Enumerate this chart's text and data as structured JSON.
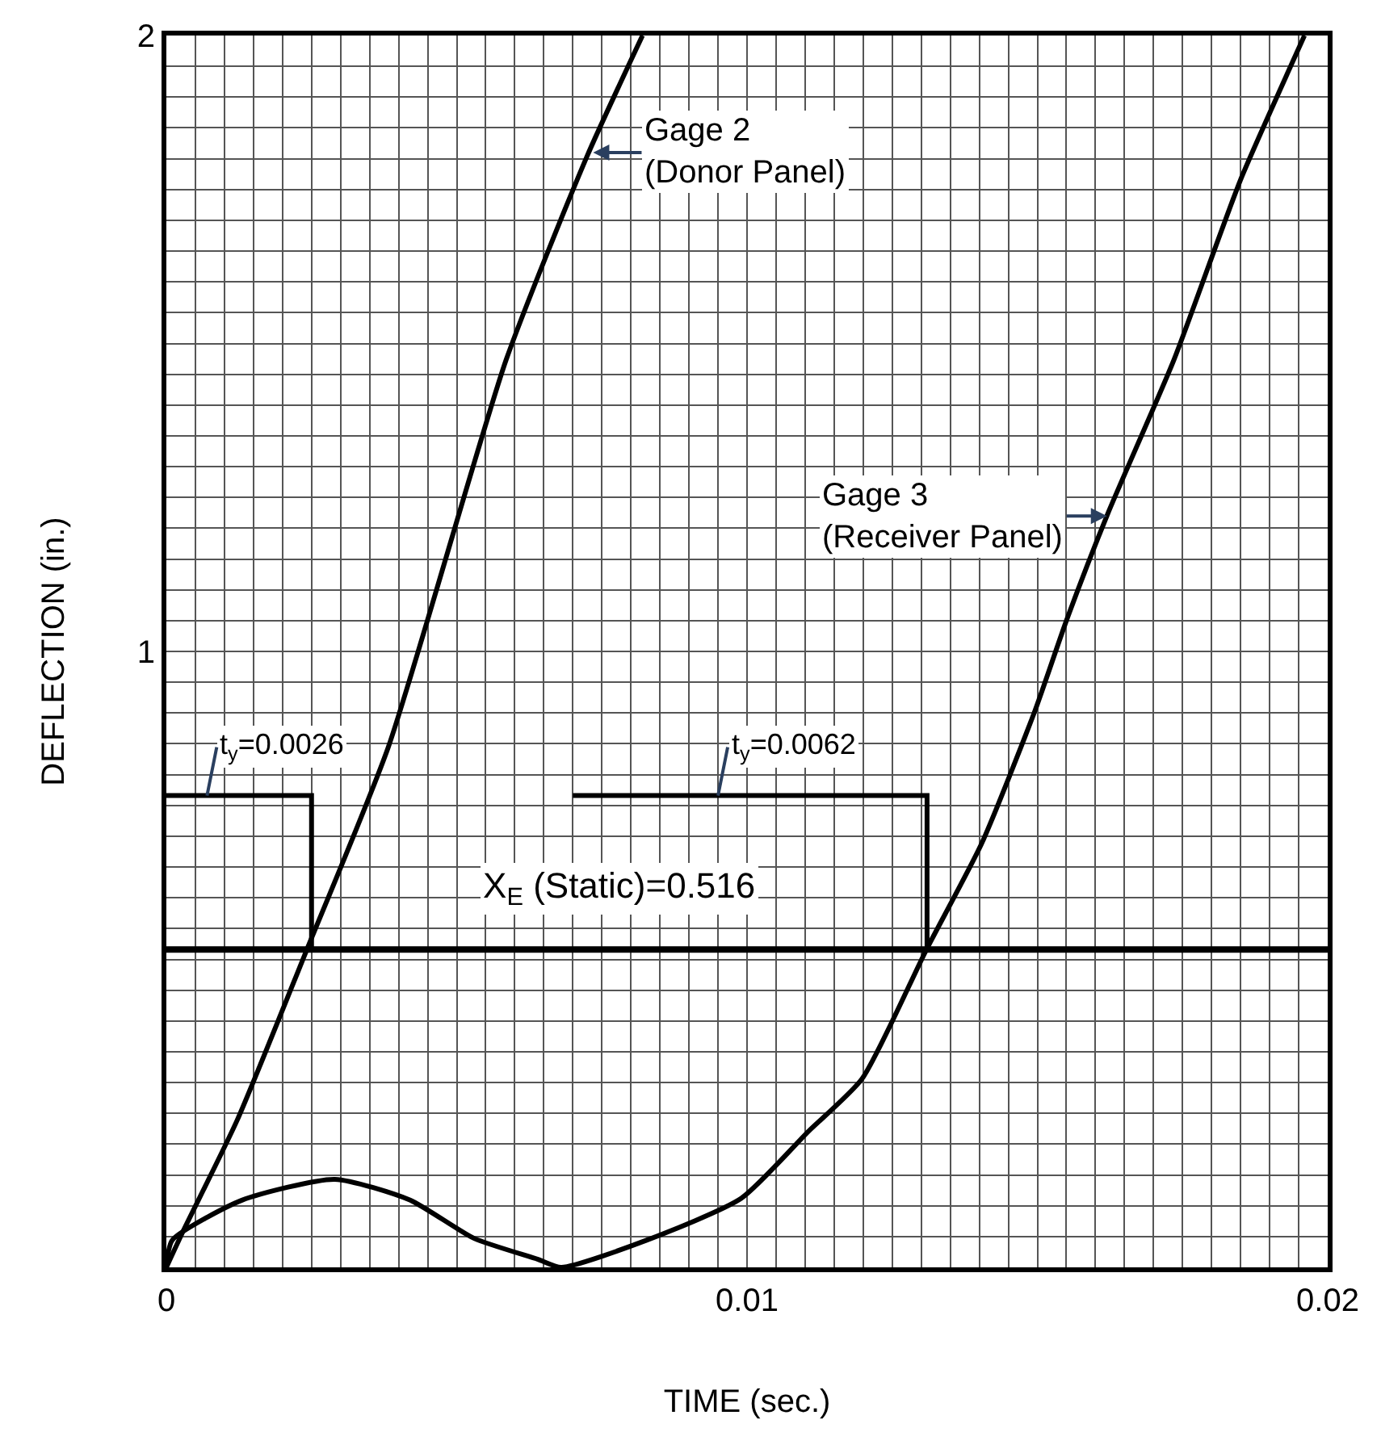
{
  "chart_data": {
    "type": "line",
    "xlabel": "TIME (sec.)",
    "ylabel": "DEFLECTION (in.)",
    "series": [
      {
        "color": "#000000",
        "x": [
          0,
          0.00028,
          0.00122,
          0.00242,
          0.00382,
          0.00585,
          0.00724,
          0.0082
        ],
        "values": [
          0,
          0.057,
          0.239,
          0.516,
          0.844,
          1.473,
          1.803,
          2.0
        ]
      },
      {
        "color": "#000000",
        "x": [
          0,
          0.0025,
          0.0025
        ],
        "values": [
          0.766,
          0.766,
          0.516
        ]
      },
      {
        "color": "#000000",
        "x": [
          0.007,
          0.0131,
          0.0131
        ],
        "values": [
          0.766,
          0.766,
          0.516
        ]
      },
      {
        "color": "#000000",
        "x": [
          0,
          0.0001,
          0.0013,
          0.0029,
          0.0042,
          0.0053,
          0.0064,
          0.0068,
          0.00827,
          0.0099,
          0.01106,
          0.01198,
          0.01309,
          0.01404,
          0.01496,
          0.0155,
          0.01621,
          0.01735,
          0.0185,
          0.01939,
          0.0196
        ],
        "values": [
          0,
          0.044,
          0.109,
          0.143,
          0.109,
          0.047,
          0.013,
          0.0,
          0.044,
          0.112,
          0.221,
          0.306,
          0.516,
          0.688,
          0.904,
          1.05,
          1.223,
          1.473,
          1.766,
          1.956,
          2.0
        ]
      }
    ],
    "xlim": [
      0,
      0.02
    ],
    "ylim": [
      0,
      2
    ],
    "xticks": [
      0,
      {
        "value": 0.0005,
        "label": null
      },
      {
        "value": 0.001,
        "label": null
      },
      {
        "value": 0.0015,
        "label": null
      },
      {
        "value": 0.002,
        "label": null
      },
      {
        "value": 0.0025,
        "label": null
      },
      {
        "value": 0.003,
        "label": null
      },
      {
        "value": 0.0035,
        "label": null
      },
      {
        "value": 0.004,
        "label": null
      },
      {
        "value": 0.0045,
        "label": null
      },
      {
        "value": 0.005,
        "label": null
      },
      {
        "value": 0.0055,
        "label": null
      },
      {
        "value": 0.006,
        "label": null
      },
      {
        "value": 0.0065,
        "label": null
      },
      {
        "value": 0.007,
        "label": null
      },
      {
        "value": 0.0075,
        "label": null
      },
      {
        "value": 0.008,
        "label": null
      },
      {
        "value": 0.0085,
        "label": null
      },
      {
        "value": 0.009,
        "label": null
      },
      {
        "value": 0.0095,
        "label": null
      },
      0.01,
      {
        "value": 0.0105,
        "label": null
      },
      {
        "value": 0.011,
        "label": null
      },
      {
        "value": 0.0115,
        "label": null
      },
      {
        "value": 0.012,
        "label": null
      },
      {
        "value": 0.0125,
        "label": null
      },
      {
        "value": 0.013,
        "label": null
      },
      {
        "value": 0.0135,
        "label": null
      },
      {
        "value": 0.014,
        "label": null
      },
      {
        "value": 0.0145,
        "label": null
      },
      {
        "value": 0.015,
        "label": null
      },
      {
        "value": 0.0155,
        "label": null
      },
      {
        "value": 0.016,
        "label": null
      },
      {
        "value": 0.0165,
        "label": null
      },
      {
        "value": 0.017,
        "label": null
      },
      {
        "value": 0.0175,
        "label": null
      },
      {
        "value": 0.018,
        "label": null
      },
      {
        "value": 0.0185,
        "label": null
      },
      {
        "value": 0.019,
        "label": null
      },
      {
        "value": 0.0195,
        "label": null
      },
      0.02
    ],
    "yticks": [
      {
        "value": 0,
        "label": null
      },
      {
        "value": 0.05,
        "label": null
      },
      {
        "value": 0.1,
        "label": null
      },
      {
        "value": 0.15,
        "label": null
      },
      {
        "value": 0.2,
        "label": null
      },
      {
        "value": 0.25,
        "label": null
      },
      {
        "value": 0.3,
        "label": null
      },
      {
        "value": 0.35,
        "label": null
      },
      {
        "value": 0.4,
        "label": null
      },
      {
        "value": 0.45,
        "label": null
      },
      {
        "value": 0.5,
        "label": null
      },
      {
        "value": 0.55,
        "label": null
      },
      {
        "value": 0.6,
        "label": null
      },
      {
        "value": 0.65,
        "label": null
      },
      {
        "value": 0.7,
        "label": null
      },
      {
        "value": 0.75,
        "label": null
      },
      {
        "value": 0.8,
        "label": null
      },
      {
        "value": 0.85,
        "label": null
      },
      {
        "value": 0.9,
        "label": null
      },
      {
        "value": 0.95,
        "label": null
      },
      1,
      {
        "value": 1.05,
        "label": null
      },
      {
        "value": 1.1,
        "label": null
      },
      {
        "value": 1.15,
        "label": null
      },
      {
        "value": 1.2,
        "label": null
      },
      {
        "value": 1.25,
        "label": null
      },
      {
        "value": 1.3,
        "label": null
      },
      {
        "value": 1.35,
        "label": null
      },
      {
        "value": 1.4,
        "label": null
      },
      {
        "value": 1.45,
        "label": null
      },
      {
        "value": 1.5,
        "label": null
      },
      {
        "value": 1.55,
        "label": null
      },
      {
        "value": 1.6,
        "label": null
      },
      {
        "value": 1.65,
        "label": null
      },
      {
        "value": 1.7,
        "label": null
      },
      {
        "value": 1.75,
        "label": null
      },
      {
        "value": 1.8,
        "label": null
      },
      {
        "value": 1.85,
        "label": null
      },
      {
        "value": 1.9,
        "label": null
      },
      {
        "value": 1.95,
        "label": null
      },
      2
    ],
    "grid": true,
    "marker": "none",
    "line_style": "solid",
    "ref_lines": [
      {
        "axis": "y",
        "value": 0.516,
        "label": "X$_{E}$ (Static)=0.516",
        "color": "#000000"
      }
    ],
    "annotations": [
      {
        "text": "t$_{y}$=0.0026",
        "x": 0.0007,
        "y": 0.766
      },
      {
        "text": "t$_{y}$=0.0062",
        "x": 0.0095,
        "y": 0.766
      },
      {
        "text": "Gage 2\n(Donor Panel)",
        "x": 0.00735,
        "y": 1.81
      },
      {
        "text": "Gage 3\n(Receiver Panel)",
        "x": 0.0162,
        "y": 1.22
      }
    ]
  }
}
